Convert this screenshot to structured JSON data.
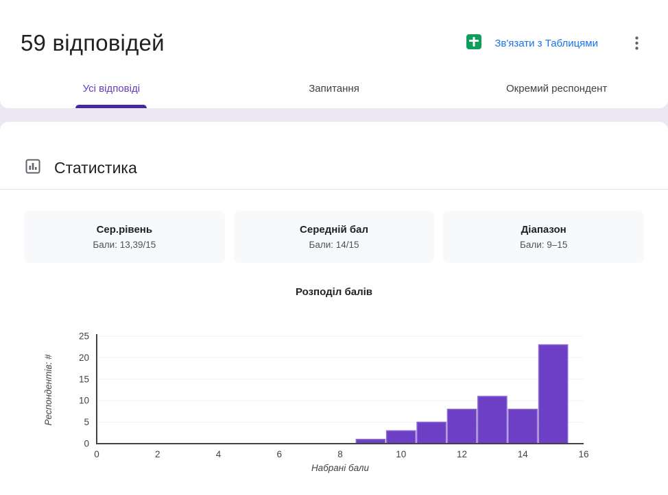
{
  "header": {
    "title": "59 відповідей",
    "sheets_link_label": "Зв'язати з Таблицями",
    "link_color": "#1a73e8",
    "sheets_icon_color": "#0f9d58"
  },
  "tabs": [
    {
      "label": "Усі відповіді",
      "active": true
    },
    {
      "label": "Запитання",
      "active": false
    },
    {
      "label": "Окремий респондент",
      "active": false
    }
  ],
  "section": {
    "title": "Статистика"
  },
  "stats_cards": [
    {
      "title": "Сер.рівень",
      "value": "Бали: 13,39/15"
    },
    {
      "title": "Середній бал",
      "value": "Бали: 14/15"
    },
    {
      "title": "Діапазон",
      "value": "Бали: 9–15"
    }
  ],
  "chart_data": {
    "type": "bar",
    "title": "Розподіл балів",
    "xlabel": "Набрані бали",
    "ylabel": "Респондентів: #",
    "x": [
      9,
      10,
      11,
      12,
      13,
      14,
      15
    ],
    "values": [
      1,
      3,
      5,
      8,
      11,
      8,
      23
    ],
    "xlim": [
      0,
      16
    ],
    "ylim": [
      0,
      25
    ],
    "x_ticks": [
      0,
      2,
      4,
      6,
      8,
      10,
      12,
      14,
      16
    ],
    "y_ticks": [
      0,
      5,
      10,
      15,
      20,
      25
    ],
    "grid": true,
    "legend": "none",
    "bar_width": 0.95,
    "bar_color": "#6d3fc4",
    "bar_stroke": "#8d6ad8"
  },
  "colors": {
    "accent_purple": "#673ab7",
    "tab_indicator": "#4527a0",
    "page_background": "#ebe7f3",
    "axis": "#424242"
  }
}
